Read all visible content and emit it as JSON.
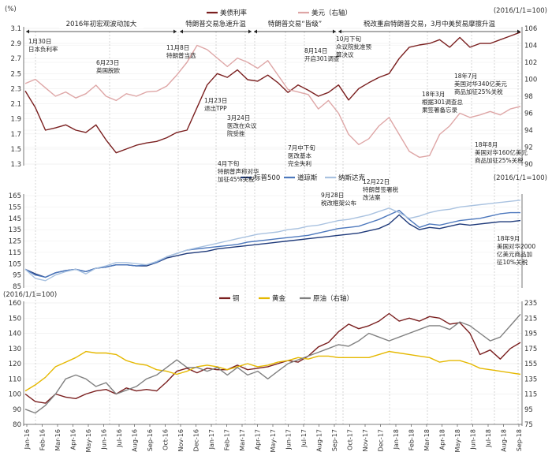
{
  "chart_data": [
    {
      "type": "line",
      "left_unit": "(%)",
      "right_unit": "(2016/1/1=100)",
      "y_left_ticks": [
        "3.1",
        "2.9",
        "2.7",
        "2.5",
        "2.3",
        "2.1",
        "1.9",
        "1.7",
        "1.5",
        "1.3"
      ],
      "y_right_ticks": [
        "106",
        "104",
        "102",
        "100",
        "98",
        "96",
        "94",
        "92",
        "90"
      ],
      "ylim_left": [
        1.3,
        3.1
      ],
      "ylim_right": [
        90,
        106
      ],
      "series": [
        {
          "name": "美债利率",
          "axis": "left",
          "color": "#7a1f1f",
          "values": [
            2.27,
            2.05,
            1.75,
            1.78,
            1.82,
            1.75,
            1.72,
            1.82,
            1.62,
            1.45,
            1.5,
            1.55,
            1.58,
            1.6,
            1.65,
            1.72,
            1.75,
            2.05,
            2.35,
            2.5,
            2.45,
            2.55,
            2.42,
            2.4,
            2.48,
            2.38,
            2.25,
            2.35,
            2.28,
            2.2,
            2.25,
            2.35,
            2.15,
            2.3,
            2.38,
            2.45,
            2.5,
            2.7,
            2.85,
            2.88,
            2.9,
            2.95,
            2.85,
            2.98,
            2.85,
            2.9,
            2.9,
            2.95,
            3.0,
            3.05
          ]
        },
        {
          "name": "美元（右轴）",
          "axis": "right",
          "color": "#dea6a6",
          "values": [
            99.5,
            100.0,
            99.0,
            98.0,
            98.5,
            97.8,
            98.3,
            99.3,
            98.0,
            97.5,
            98.3,
            98.0,
            98.5,
            98.6,
            99.2,
            100.5,
            102.0,
            104.0,
            103.5,
            102.5,
            101.5,
            102.5,
            102.0,
            101.3,
            102.2,
            100.5,
            98.8,
            98.5,
            98.2,
            96.5,
            97.5,
            96.0,
            93.5,
            92.3,
            93.0,
            94.5,
            95.5,
            93.5,
            91.5,
            90.8,
            91.0,
            93.5,
            94.5,
            96.0,
            95.5,
            95.8,
            96.2,
            95.8,
            96.5,
            96.8
          ]
        }
      ]
    },
    {
      "type": "line",
      "right_unit": "(2016/1/1=100)",
      "y_left_ticks": [
        "165",
        "155",
        "145",
        "135",
        "125",
        "115",
        "105",
        "95",
        "85"
      ],
      "ylim": [
        85,
        165
      ],
      "series": [
        {
          "name": "标普500",
          "color": "#1f3a7a",
          "values": [
            100,
            96,
            93,
            97,
            99,
            100,
            98,
            101,
            102,
            104,
            104,
            103,
            103,
            106,
            110,
            112,
            114,
            115,
            116,
            118,
            119,
            120,
            121,
            122,
            123,
            124,
            125,
            126,
            127,
            128,
            129,
            130,
            131,
            132,
            134,
            136,
            140,
            148,
            140,
            135,
            137,
            136,
            138,
            140,
            139,
            140,
            141,
            142,
            142,
            143
          ]
        },
        {
          "name": "道琼斯",
          "color": "#4d78bd",
          "values": [
            100,
            95,
            93,
            97,
            99,
            100,
            98,
            101,
            102,
            104,
            104,
            103,
            104,
            106,
            111,
            114,
            117,
            118,
            119,
            120,
            121,
            122,
            124,
            125,
            126,
            127,
            128,
            129,
            130,
            132,
            134,
            136,
            137,
            138,
            141,
            144,
            148,
            152,
            144,
            137,
            140,
            139,
            141,
            143,
            144,
            145,
            147,
            149,
            150,
            150
          ]
        },
        {
          "name": "纳斯达克",
          "color": "#a9c2e0",
          "values": [
            100,
            92,
            90,
            95,
            98,
            100,
            96,
            101,
            103,
            106,
            106,
            105,
            104,
            107,
            111,
            114,
            117,
            119,
            121,
            123,
            125,
            127,
            129,
            131,
            132,
            133,
            135,
            136,
            138,
            139,
            141,
            143,
            144,
            146,
            148,
            151,
            154,
            150,
            145,
            147,
            150,
            152,
            153,
            155,
            156,
            157,
            158,
            159,
            160,
            161
          ]
        }
      ]
    },
    {
      "type": "line",
      "left_unit": "(2016/1/1=100)",
      "y_left_ticks": [
        "160",
        "150",
        "140",
        "130",
        "120",
        "110",
        "100",
        "90",
        "80"
      ],
      "y_right_ticks": [
        "235",
        "215",
        "195",
        "175",
        "155",
        "135",
        "115",
        "95",
        "75"
      ],
      "ylim_left": [
        80,
        160
      ],
      "ylim_right": [
        75,
        235
      ],
      "series": [
        {
          "name": "铜",
          "axis": "left",
          "color": "#7a1f1f",
          "values": [
            100,
            95,
            94,
            100,
            98,
            97,
            100,
            102,
            103,
            100,
            104,
            102,
            103,
            102,
            108,
            115,
            117,
            114,
            117,
            116,
            116,
            119,
            116,
            117,
            118,
            120,
            122,
            121,
            125,
            131,
            134,
            141,
            146,
            143,
            145,
            148,
            153,
            148,
            150,
            148,
            151,
            150,
            146,
            147,
            140,
            126,
            129,
            123,
            130,
            134
          ]
        },
        {
          "name": "黄金",
          "axis": "left",
          "color": "#e5b800",
          "values": [
            102,
            106,
            111,
            118,
            121,
            124,
            128,
            127,
            127,
            126,
            122,
            120,
            119,
            116,
            115,
            113,
            115,
            118,
            119,
            118,
            116,
            118,
            120,
            118,
            119,
            121,
            122,
            124,
            123,
            125,
            125,
            124,
            124,
            124,
            124,
            126,
            128,
            127,
            126,
            125,
            124,
            121,
            122,
            122,
            120,
            117,
            116,
            115,
            114,
            113
          ]
        },
        {
          "name": "原油（右轴）",
          "axis": "right",
          "color": "#808080",
          "values": [
            95,
            90,
            100,
            115,
            135,
            140,
            135,
            125,
            130,
            115,
            120,
            125,
            135,
            140,
            150,
            160,
            150,
            150,
            145,
            150,
            140,
            150,
            140,
            145,
            135,
            145,
            155,
            160,
            165,
            170,
            175,
            180,
            178,
            185,
            195,
            190,
            185,
            190,
            195,
            200,
            205,
            205,
            200,
            210,
            205,
            195,
            185,
            190,
            205,
            220
          ]
        }
      ]
    }
  ],
  "x_ticks": [
    "Jan-16",
    "Feb-16",
    "Mar-16",
    "Apr-16",
    "May-16",
    "Jun-16",
    "Jul-16",
    "Aug-16",
    "Sep-16",
    "Oct-16",
    "Nov-16",
    "Dec-16",
    "Jan-17",
    "Feb-17",
    "Mar-17",
    "Apr-17",
    "May-17",
    "Jun-17",
    "Jul-17",
    "Aug-17",
    "Sep-17",
    "Oct-17",
    "Nov-17",
    "Dec-17",
    "Jan-18",
    "Feb-18",
    "Mar-18",
    "Apr-18",
    "May-18",
    "Jun-18",
    "Jul-18",
    "Aug-18",
    "Sep-18"
  ],
  "phases": [
    "2016年初宏观波动加大",
    "特朗普交易急速升温",
    "特朗普交易“皆级”",
    "税改重启特朗普交易，3月中美贸易摩擦升温"
  ],
  "annotations": [
    {
      "lines": [
        "1月30日",
        "日本负利率"
      ]
    },
    {
      "lines": [
        "6月23日",
        "英国脱欧"
      ]
    },
    {
      "lines": [
        "11月8日",
        "特朗普当选"
      ]
    },
    {
      "lines": [
        "1月23日",
        "退出TPP"
      ]
    },
    {
      "lines": [
        "3月24日",
        "医改在众议",
        "院受挫"
      ]
    },
    {
      "lines": [
        "4月下旬",
        "特朗普声称对华",
        "加征45%关税"
      ]
    },
    {
      "lines": [
        "7月中下旬",
        "医改基本",
        "完全失利"
      ]
    },
    {
      "lines": [
        "8月14日",
        "开启301调查"
      ]
    },
    {
      "lines": [
        "9月28日",
        "税改框架公布"
      ]
    },
    {
      "lines": [
        "10月下旬",
        "众议院批准预",
        "算决议"
      ]
    },
    {
      "lines": [
        "12月22日",
        "特朗普签署税",
        "改法案"
      ]
    },
    {
      "lines": [
        "18年3月",
        "根据301调查总",
        "果签署备忘录"
      ]
    },
    {
      "lines": [
        "18年7月",
        "美国对华340亿美元",
        "商品加征25%关税"
      ]
    },
    {
      "lines": [
        "18年8月",
        "美国对华160亿美元",
        "商品加征25%关税"
      ]
    },
    {
      "lines": [
        "18年9月",
        "美国对华2000",
        "亿美元商品加",
        "征10%关税"
      ]
    }
  ]
}
